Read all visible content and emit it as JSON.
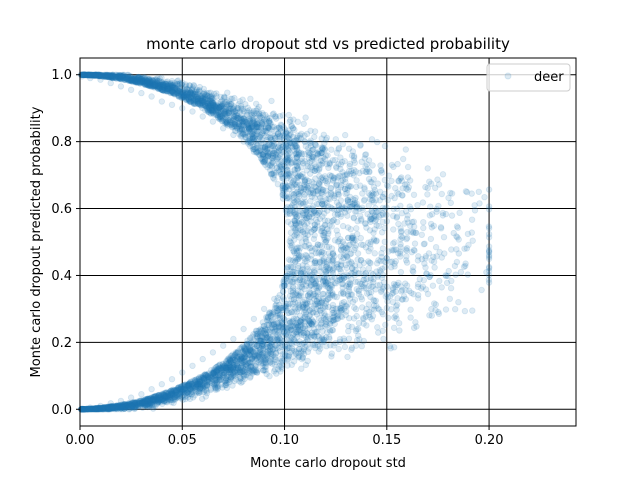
{
  "chart_data": {
    "type": "scatter",
    "title": "monte carlo dropout std vs predicted probability",
    "xlabel": "Monte carlo dropout std",
    "ylabel": "Monte carlo dropout predicted probability",
    "xlim": [
      0.0,
      0.2425
    ],
    "ylim": [
      -0.05,
      1.05
    ],
    "xticks": [
      "0.00",
      "0.05",
      "0.10",
      "0.15",
      "0.20"
    ],
    "yticks": [
      "0.0",
      "0.2",
      "0.4",
      "0.6",
      "0.8",
      "1.0"
    ],
    "grid": true,
    "legend_position": "top-right",
    "series": [
      {
        "name": "deer",
        "color": "#1f77b4",
        "alpha": 0.15,
        "marker": "circle",
        "description_points": [
          [
            0.001,
            0.995
          ],
          [
            0.005,
            0.99
          ],
          [
            0.01,
            0.985
          ],
          [
            0.015,
            0.975
          ],
          [
            0.02,
            0.965
          ],
          [
            0.025,
            0.955
          ],
          [
            0.03,
            0.945
          ],
          [
            0.035,
            0.935
          ],
          [
            0.04,
            0.92
          ],
          [
            0.045,
            0.91
          ],
          [
            0.05,
            0.9
          ],
          [
            0.055,
            0.89
          ],
          [
            0.06,
            0.875
          ],
          [
            0.065,
            0.86
          ],
          [
            0.07,
            0.84
          ],
          [
            0.075,
            0.82
          ],
          [
            0.08,
            0.8
          ],
          [
            0.085,
            0.77
          ],
          [
            0.09,
            0.74
          ],
          [
            0.095,
            0.7
          ],
          [
            0.1,
            0.66
          ],
          [
            0.105,
            0.62
          ],
          [
            0.11,
            0.58
          ],
          [
            0.115,
            0.54
          ],
          [
            0.12,
            0.5
          ],
          [
            0.001,
            0.002
          ],
          [
            0.005,
            0.005
          ],
          [
            0.01,
            0.01
          ],
          [
            0.015,
            0.018
          ],
          [
            0.02,
            0.025
          ],
          [
            0.025,
            0.035
          ],
          [
            0.03,
            0.045
          ],
          [
            0.035,
            0.06
          ],
          [
            0.04,
            0.075
          ],
          [
            0.045,
            0.09
          ],
          [
            0.05,
            0.11
          ],
          [
            0.055,
            0.13
          ],
          [
            0.06,
            0.15
          ],
          [
            0.065,
            0.17
          ],
          [
            0.07,
            0.19
          ],
          [
            0.075,
            0.21
          ],
          [
            0.08,
            0.24
          ],
          [
            0.085,
            0.27
          ],
          [
            0.09,
            0.3
          ],
          [
            0.095,
            0.33
          ],
          [
            0.1,
            0.37
          ],
          [
            0.105,
            0.41
          ],
          [
            0.11,
            0.45
          ],
          [
            0.115,
            0.48
          ],
          [
            0.17,
            0.72
          ],
          [
            0.16,
            0.53
          ],
          [
            0.165,
            0.61
          ],
          [
            0.188,
            0.48
          ],
          [
            0.185,
            0.32
          ],
          [
            0.172,
            0.28
          ],
          [
            0.164,
            0.26
          ],
          [
            0.195,
            0.65
          ],
          [
            0.14,
            0.3
          ],
          [
            0.145,
            0.55
          ]
        ]
      }
    ]
  }
}
